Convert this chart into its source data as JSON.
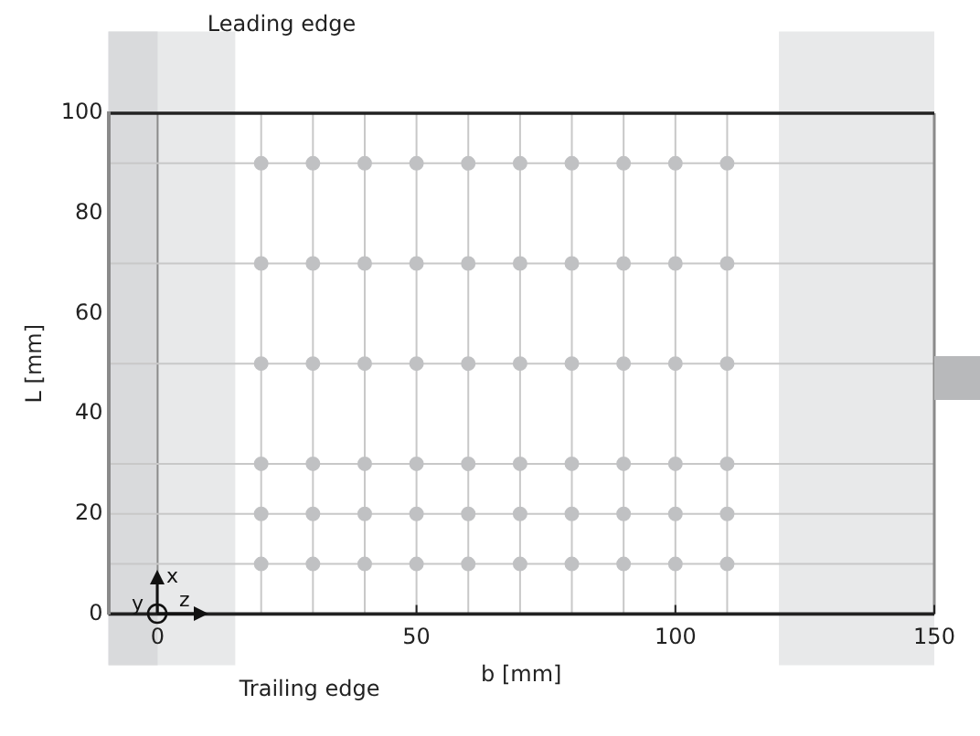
{
  "chart_data": {
    "type": "scatter",
    "title": "Leading edge",
    "xlabel": "b [mm]",
    "ylabel": "L [mm]",
    "annotations": [
      "Trailing edge",
      "x",
      "y",
      "z"
    ],
    "x": [
      20,
      30,
      40,
      50,
      60,
      70,
      80,
      90,
      100,
      110,
      20,
      30,
      40,
      50,
      60,
      70,
      80,
      90,
      100,
      110,
      20,
      30,
      40,
      50,
      60,
      70,
      80,
      90,
      100,
      110,
      20,
      30,
      40,
      50,
      60,
      70,
      80,
      90,
      100,
      110,
      20,
      30,
      40,
      50,
      60,
      70,
      80,
      90,
      100,
      110,
      20,
      30,
      40,
      50,
      60,
      70,
      80,
      90,
      100,
      110
    ],
    "values": [
      10,
      10,
      10,
      10,
      10,
      10,
      10,
      10,
      10,
      10,
      20,
      20,
      20,
      20,
      20,
      20,
      20,
      20,
      20,
      20,
      30,
      30,
      30,
      30,
      30,
      30,
      30,
      30,
      30,
      30,
      50,
      50,
      50,
      50,
      50,
      50,
      50,
      50,
      50,
      50,
      70,
      70,
      70,
      70,
      70,
      70,
      70,
      70,
      70,
      70,
      90,
      90,
      90,
      90,
      90,
      90,
      90,
      90,
      90,
      90
    ],
    "color": "#c0c1c3",
    "marker": "circle",
    "xlim": [
      -9.5,
      150
    ],
    "xticks": [
      0,
      50,
      100,
      150
    ],
    "ylim": [
      0,
      100
    ],
    "yticks": [
      0,
      20,
      40,
      60,
      80,
      100
    ],
    "grid": false,
    "bands": [
      {
        "axis": "x",
        "from": -9.5,
        "to": 15,
        "color": "#e8e9ea"
      },
      {
        "axis": "x",
        "from": -9.5,
        "to": 0,
        "color": "#d9dadc"
      },
      {
        "axis": "x",
        "from": 120,
        "to": 150,
        "color": "#e8e9ea"
      }
    ],
    "ref_lines": [
      {
        "axis": "x",
        "value": 20,
        "color": "#c8c8c8"
      },
      {
        "axis": "x",
        "value": 30,
        "color": "#c8c8c8"
      },
      {
        "axis": "x",
        "value": 40,
        "color": "#c8c8c8"
      },
      {
        "axis": "x",
        "value": 50,
        "color": "#c8c8c8"
      },
      {
        "axis": "x",
        "value": 60,
        "color": "#c8c8c8"
      },
      {
        "axis": "x",
        "value": 70,
        "color": "#c8c8c8"
      },
      {
        "axis": "x",
        "value": 80,
        "color": "#c8c8c8"
      },
      {
        "axis": "x",
        "value": 90,
        "color": "#c8c8c8"
      },
      {
        "axis": "x",
        "value": 100,
        "color": "#c8c8c8"
      },
      {
        "axis": "x",
        "value": 110,
        "color": "#c8c8c8"
      },
      {
        "axis": "x",
        "value": 0,
        "color": "#8a8a8a"
      },
      {
        "axis": "y",
        "value": 10,
        "color": "#c8c8c8"
      },
      {
        "axis": "y",
        "value": 20,
        "color": "#c8c8c8"
      },
      {
        "axis": "y",
        "value": 30,
        "color": "#c8c8c8"
      },
      {
        "axis": "y",
        "value": 50,
        "color": "#c8c8c8"
      },
      {
        "axis": "y",
        "value": 70,
        "color": "#c8c8c8"
      },
      {
        "axis": "y",
        "value": 90,
        "color": "#c8c8c8"
      }
    ],
    "legend": false
  }
}
